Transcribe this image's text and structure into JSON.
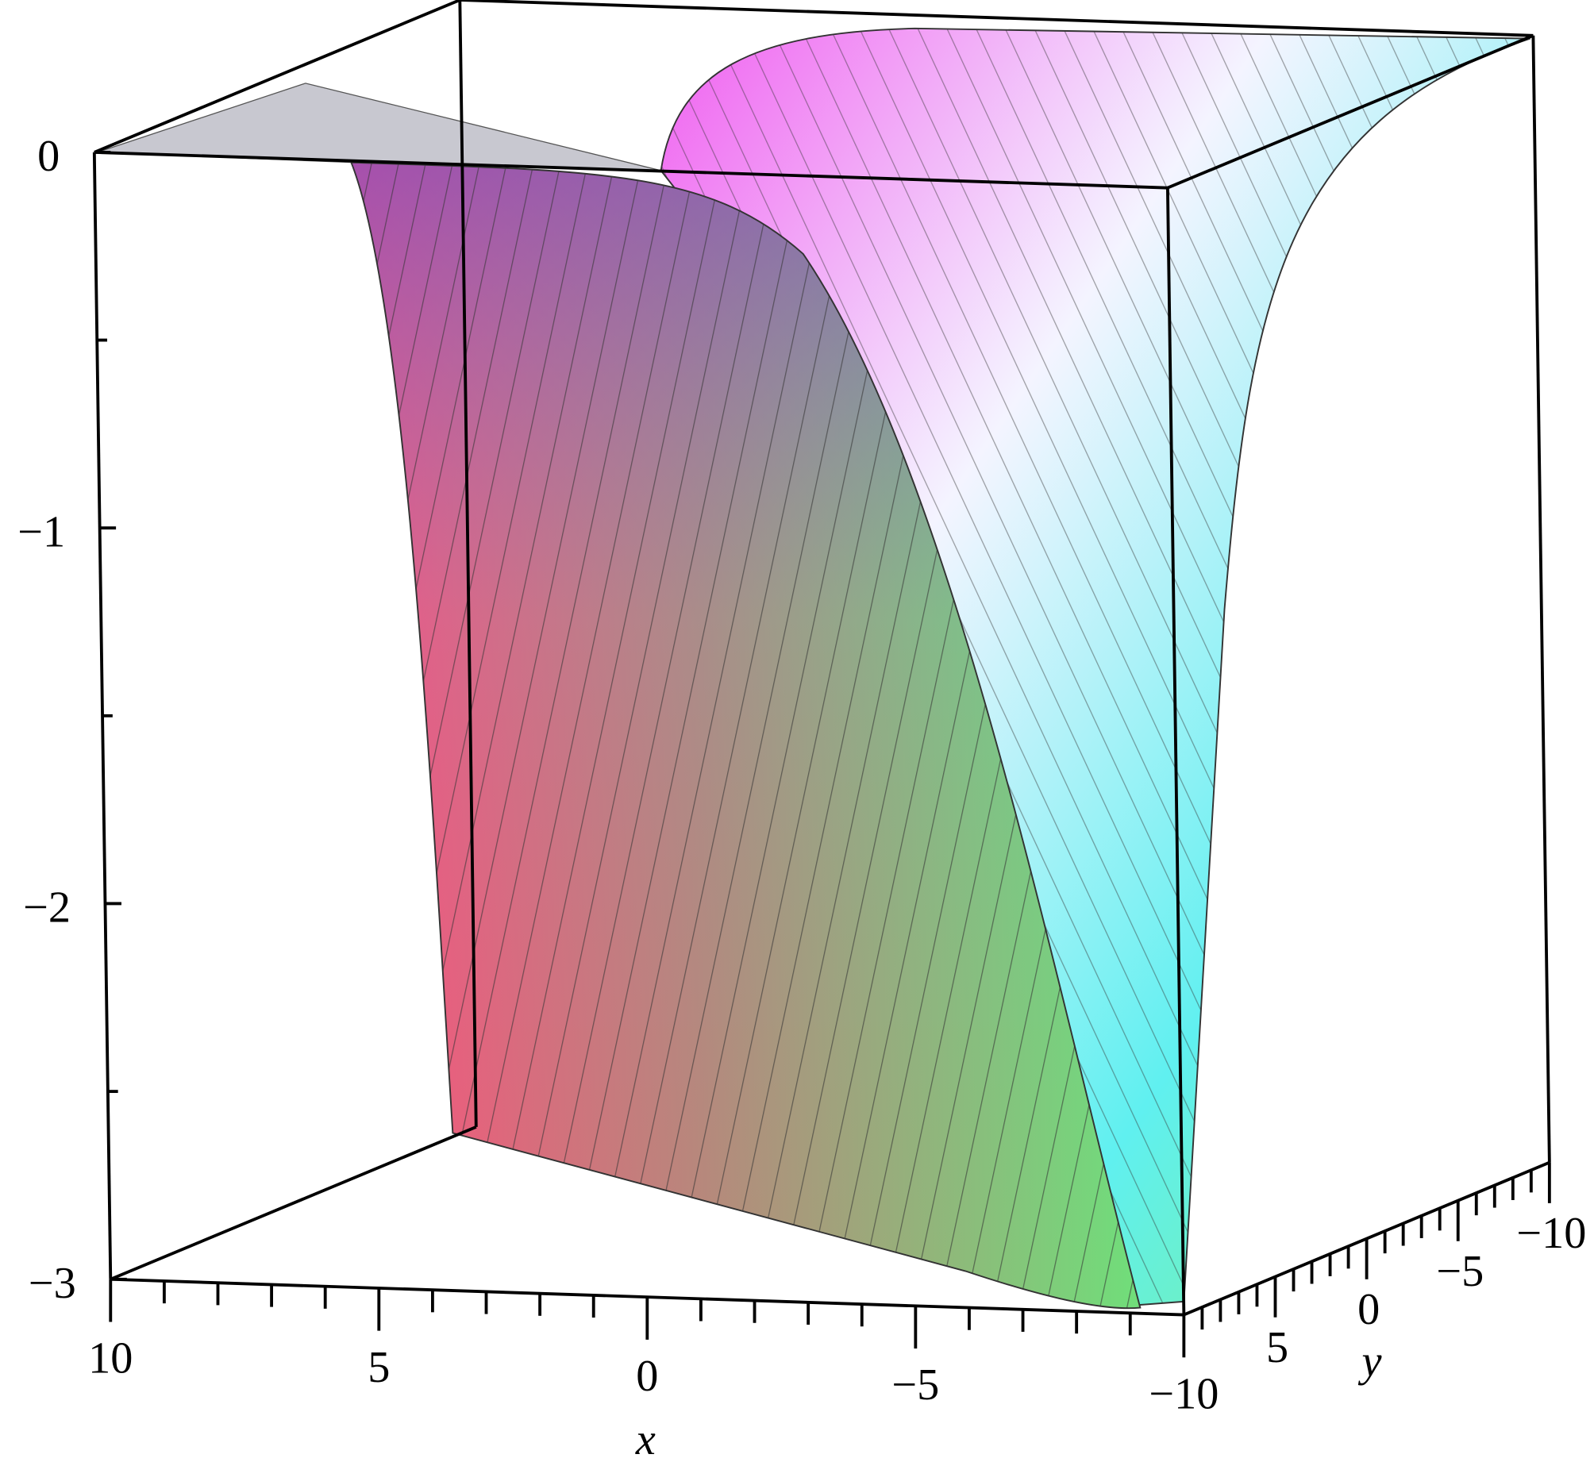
{
  "chart_data": {
    "type": "surface3d",
    "xlabel": "x",
    "ylabel": "y",
    "xlim": [
      -10,
      10
    ],
    "ylim": [
      -10,
      10
    ],
    "zlim": [
      -3,
      0
    ],
    "xticks": [
      10,
      5,
      0,
      {
        "value": -5,
        "label": "−5"
      },
      {
        "value": -10,
        "label": "−10"
      }
    ],
    "yticks": [
      5,
      0,
      {
        "value": -5,
        "label": "−5"
      },
      {
        "value": -10,
        "label": "−10"
      }
    ],
    "zticks": [
      0,
      {
        "value": -1,
        "label": "−1"
      },
      {
        "value": -2,
        "label": "−2"
      },
      {
        "value": -3,
        "label": "−3"
      }
    ],
    "xminor": [
      9,
      8,
      7,
      6,
      4,
      3,
      2,
      1,
      -1,
      -2,
      -3,
      -4,
      -6,
      -7,
      -8,
      -9
    ],
    "yminor": [
      9,
      8,
      7,
      6,
      4,
      3,
      2,
      1,
      -1,
      -2,
      -3,
      -4,
      -6,
      -7,
      -8,
      -9
    ],
    "zminor": [
      -0.5,
      -1.5,
      -2.5
    ]
  }
}
